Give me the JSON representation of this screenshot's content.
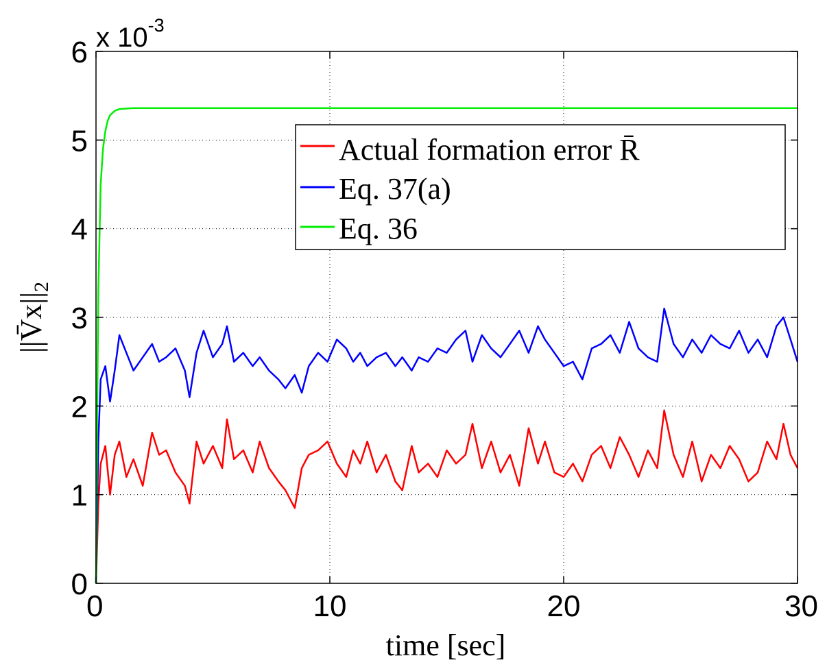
{
  "chart_data": {
    "type": "line",
    "title": "",
    "xlabel": "time [sec]",
    "ylabel": "||V̄x||₂",
    "ylabel_main": "||V̄x||",
    "ylabel_sub": "2",
    "y_multiplier_base": "x 10",
    "y_multiplier_exp": "-3",
    "xlim": [
      0,
      30
    ],
    "ylim": [
      0,
      6
    ],
    "x_ticks": [
      0,
      10,
      20,
      30
    ],
    "y_ticks": [
      0,
      1,
      2,
      3,
      4,
      5,
      6
    ],
    "grid": true,
    "legend_position": "upper-right",
    "series": [
      {
        "name": "Actual formation error R̄",
        "color": "#ff0000",
        "x": [
          0,
          0.1,
          0.2,
          0.4,
          0.6,
          0.8,
          1.0,
          1.3,
          1.6,
          2.0,
          2.4,
          2.7,
          3.0,
          3.4,
          3.8,
          4.0,
          4.3,
          4.6,
          5.0,
          5.4,
          5.6,
          5.9,
          6.3,
          6.7,
          7.0,
          7.4,
          7.8,
          8.1,
          8.5,
          8.8,
          9.1,
          9.5,
          9.9,
          10.3,
          10.7,
          11.0,
          11.3,
          11.6,
          12.0,
          12.4,
          12.8,
          13.1,
          13.5,
          13.8,
          14.2,
          14.6,
          15.0,
          15.4,
          15.8,
          16.1,
          16.5,
          16.9,
          17.3,
          17.7,
          18.1,
          18.5,
          18.9,
          19.2,
          19.6,
          20.0,
          20.4,
          20.8,
          21.2,
          21.6,
          22.0,
          22.4,
          22.8,
          23.2,
          23.6,
          24.0,
          24.3,
          24.7,
          25.1,
          25.5,
          25.9,
          26.3,
          26.7,
          27.1,
          27.5,
          27.9,
          28.3,
          28.7,
          29.1,
          29.4,
          29.7,
          30.0
        ],
        "values": [
          0,
          0.9,
          1.35,
          1.55,
          1.0,
          1.45,
          1.6,
          1.2,
          1.4,
          1.1,
          1.7,
          1.45,
          1.5,
          1.25,
          1.1,
          0.9,
          1.6,
          1.35,
          1.55,
          1.3,
          1.85,
          1.4,
          1.5,
          1.25,
          1.6,
          1.3,
          1.15,
          1.05,
          0.85,
          1.3,
          1.45,
          1.5,
          1.6,
          1.35,
          1.2,
          1.5,
          1.35,
          1.6,
          1.25,
          1.45,
          1.15,
          1.05,
          1.55,
          1.25,
          1.35,
          1.2,
          1.5,
          1.35,
          1.45,
          1.8,
          1.3,
          1.6,
          1.25,
          1.45,
          1.1,
          1.75,
          1.35,
          1.6,
          1.25,
          1.2,
          1.35,
          1.15,
          1.45,
          1.55,
          1.3,
          1.65,
          1.45,
          1.2,
          1.5,
          1.3,
          1.95,
          1.45,
          1.2,
          1.6,
          1.15,
          1.45,
          1.3,
          1.55,
          1.4,
          1.15,
          1.25,
          1.6,
          1.4,
          1.8,
          1.45,
          1.3
        ]
      },
      {
        "name": "Eq. 37(a)",
        "color": "#0000ff",
        "x": [
          0,
          0.1,
          0.2,
          0.4,
          0.6,
          0.8,
          1.0,
          1.3,
          1.6,
          2.0,
          2.4,
          2.7,
          3.0,
          3.4,
          3.8,
          4.0,
          4.3,
          4.6,
          5.0,
          5.4,
          5.6,
          5.9,
          6.3,
          6.7,
          7.0,
          7.4,
          7.8,
          8.1,
          8.5,
          8.8,
          9.1,
          9.5,
          9.9,
          10.3,
          10.7,
          11.0,
          11.3,
          11.6,
          12.0,
          12.4,
          12.8,
          13.1,
          13.5,
          13.8,
          14.2,
          14.6,
          15.0,
          15.4,
          15.8,
          16.1,
          16.5,
          16.9,
          17.3,
          17.7,
          18.1,
          18.5,
          18.9,
          19.2,
          19.6,
          20.0,
          20.4,
          20.8,
          21.2,
          21.6,
          22.0,
          22.4,
          22.8,
          23.2,
          23.6,
          24.0,
          24.3,
          24.7,
          25.1,
          25.5,
          25.9,
          26.3,
          26.7,
          27.1,
          27.5,
          27.9,
          28.3,
          28.7,
          29.1,
          29.4,
          29.7,
          30.0
        ],
        "values": [
          0,
          1.6,
          2.3,
          2.45,
          2.05,
          2.4,
          2.8,
          2.6,
          2.4,
          2.55,
          2.7,
          2.5,
          2.55,
          2.65,
          2.4,
          2.1,
          2.6,
          2.85,
          2.55,
          2.7,
          2.9,
          2.5,
          2.6,
          2.45,
          2.55,
          2.4,
          2.3,
          2.2,
          2.35,
          2.15,
          2.45,
          2.6,
          2.5,
          2.75,
          2.65,
          2.5,
          2.6,
          2.45,
          2.55,
          2.6,
          2.45,
          2.55,
          2.4,
          2.55,
          2.5,
          2.65,
          2.6,
          2.75,
          2.85,
          2.5,
          2.8,
          2.65,
          2.55,
          2.7,
          2.85,
          2.6,
          2.9,
          2.75,
          2.6,
          2.45,
          2.5,
          2.3,
          2.65,
          2.7,
          2.8,
          2.6,
          2.95,
          2.65,
          2.55,
          2.5,
          3.1,
          2.7,
          2.55,
          2.75,
          2.6,
          2.8,
          2.7,
          2.65,
          2.85,
          2.6,
          2.75,
          2.55,
          2.9,
          3.0,
          2.75,
          2.5
        ]
      },
      {
        "name": "Eq. 36",
        "color": "#00ee00",
        "x": [
          0,
          0.05,
          0.1,
          0.2,
          0.3,
          0.4,
          0.5,
          0.6,
          0.8,
          1.0,
          1.3,
          1.6,
          2.0,
          3.0,
          5.0,
          8.0,
          12.0,
          16.0,
          20.0,
          25.0,
          30.0
        ],
        "values": [
          0,
          1.9,
          3.3,
          4.5,
          4.9,
          5.1,
          5.22,
          5.28,
          5.33,
          5.35,
          5.355,
          5.36,
          5.36,
          5.36,
          5.36,
          5.36,
          5.36,
          5.36,
          5.36,
          5.36,
          5.36
        ]
      }
    ]
  }
}
